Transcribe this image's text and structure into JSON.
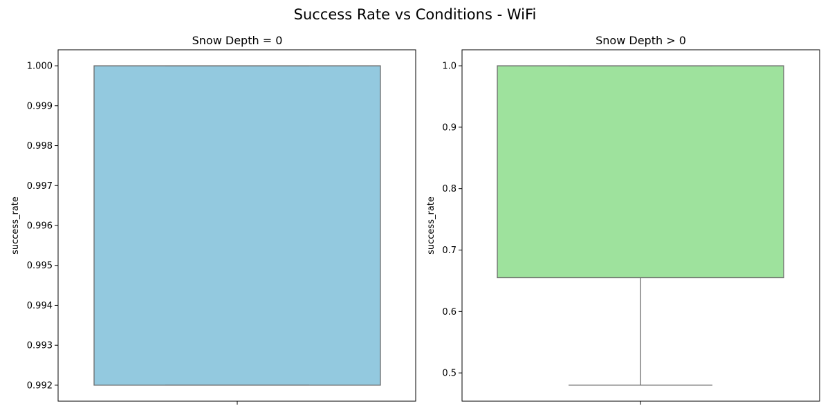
{
  "figure": {
    "suptitle": "Success Rate vs Conditions - WiFi"
  },
  "chart_data": [
    {
      "type": "box",
      "title": "Snow Depth = 0",
      "xlabel": "",
      "ylabel": "success_rate",
      "ylim": [
        0.9916,
        1.0004
      ],
      "yticks": [
        0.992,
        0.993,
        0.994,
        0.995,
        0.996,
        0.997,
        0.998,
        0.999,
        1.0
      ],
      "ytick_labels": [
        "0.992",
        "0.993",
        "0.994",
        "0.995",
        "0.996",
        "0.997",
        "0.998",
        "0.999",
        "1.000"
      ],
      "box": {
        "whisker_low": 0.992,
        "q1": 0.992,
        "median": 1.0,
        "q3": 1.0,
        "whisker_high": 1.0
      },
      "color": "#93c9df",
      "grid": false
    },
    {
      "type": "box",
      "title": "Snow Depth > 0",
      "xlabel": "",
      "ylabel": "success_rate",
      "ylim": [
        0.454,
        1.026
      ],
      "yticks": [
        0.5,
        0.6,
        0.7,
        0.8,
        0.9,
        1.0
      ],
      "ytick_labels": [
        "0.5",
        "0.6",
        "0.7",
        "0.8",
        "0.9",
        "1.0"
      ],
      "box": {
        "whisker_low": 0.48,
        "q1": 0.655,
        "median": 1.0,
        "q3": 1.0,
        "whisker_high": 1.0
      },
      "color": "#9ee29d",
      "grid": false
    }
  ]
}
